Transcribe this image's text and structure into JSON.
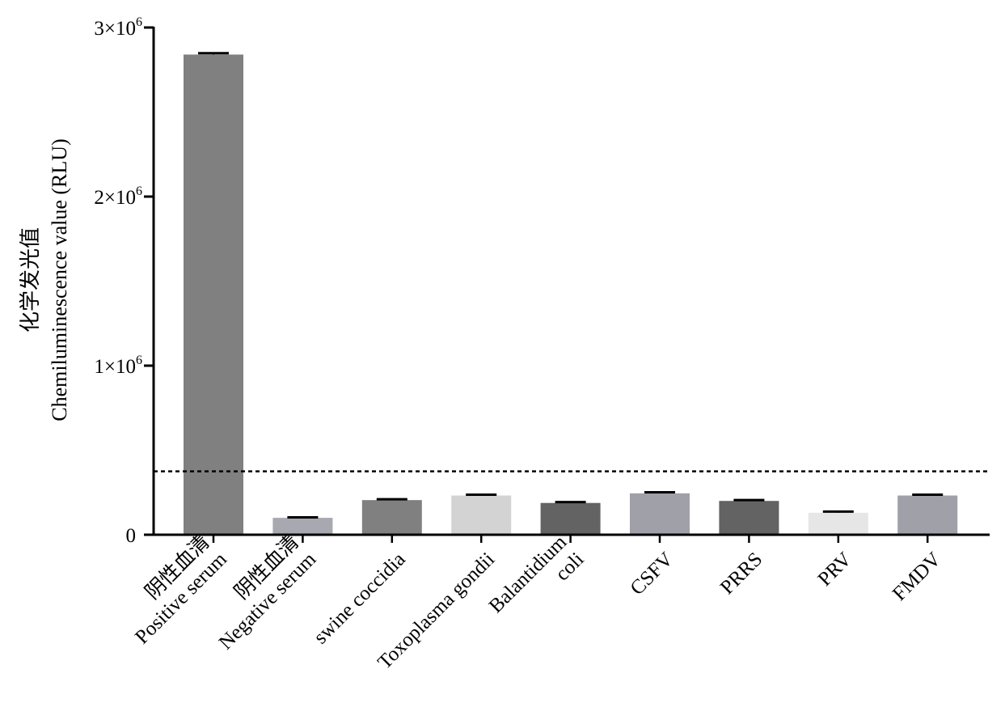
{
  "chart_data": {
    "type": "bar",
    "categories": [
      [
        "阴性血清",
        "Positive serum"
      ],
      [
        "阴性血清",
        "Negative serum"
      ],
      [
        "swine coccidia"
      ],
      [
        "Toxoplasma gondii"
      ],
      [
        "Balantidium",
        "coli"
      ],
      [
        "CSFV"
      ],
      [
        "PRRS"
      ],
      [
        "PRV"
      ],
      [
        "FMDV"
      ]
    ],
    "values": [
      2840000,
      100000,
      205000,
      232000,
      188000,
      245000,
      200000,
      130000,
      232000
    ],
    "errors": [
      8000,
      3000,
      5000,
      5000,
      5000,
      6000,
      5000,
      7000,
      5000
    ],
    "colors": [
      "#808080",
      "#a8a8b0",
      "#808080",
      "#d3d3d3",
      "#636363",
      "#a0a0a8",
      "#636363",
      "#e6e6e6",
      "#a0a0a8"
    ],
    "cutoff": 375000,
    "ylim": [
      0,
      3000000
    ],
    "yticks": [
      {
        "value": 0,
        "base": "0",
        "exp": ""
      },
      {
        "value": 1000000,
        "base": "1×10",
        "exp": "6"
      },
      {
        "value": 2000000,
        "base": "2×10",
        "exp": "6"
      },
      {
        "value": 3000000,
        "base": "3×10",
        "exp": "6"
      }
    ],
    "ylabel_zh": "化学发光值",
    "ylabel_en": "Chemiluminescence value (RLU)",
    "xlabel": "",
    "grid": false
  }
}
